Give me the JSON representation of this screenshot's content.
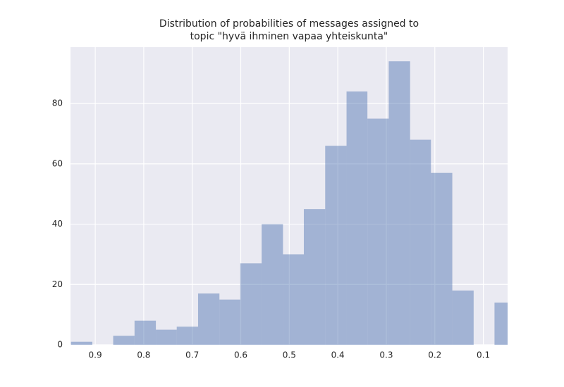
{
  "chart_data": {
    "type": "histogram",
    "title": [
      "Distribution of probabilities of messages assigned to",
      "topic \"hyvä ihminen vapaa yhteiskunta\""
    ],
    "bins": [
      0.95,
      0.906,
      0.863,
      0.819,
      0.775,
      0.732,
      0.688,
      0.644,
      0.601,
      0.557,
      0.513,
      0.47,
      0.426,
      0.382,
      0.339,
      0.295,
      0.251,
      0.208,
      0.164,
      0.12,
      0.077,
      0.033
    ],
    "values": [
      1,
      0,
      3,
      8,
      5,
      6,
      17,
      15,
      27,
      40,
      30,
      45,
      66,
      84,
      75,
      94,
      68,
      57,
      18,
      0,
      14
    ],
    "color": "#4c72b0",
    "opacity": 0.45,
    "background": "#eaeaf2",
    "xlim": [
      0.951,
      0.05
    ],
    "xticks": [
      0.9,
      0.8,
      0.7,
      0.6,
      0.5,
      0.4,
      0.3,
      0.2,
      0.1
    ],
    "ylim": [
      0,
      98.7
    ],
    "yticks": [
      0,
      20,
      40,
      60,
      80
    ],
    "grid": true
  }
}
